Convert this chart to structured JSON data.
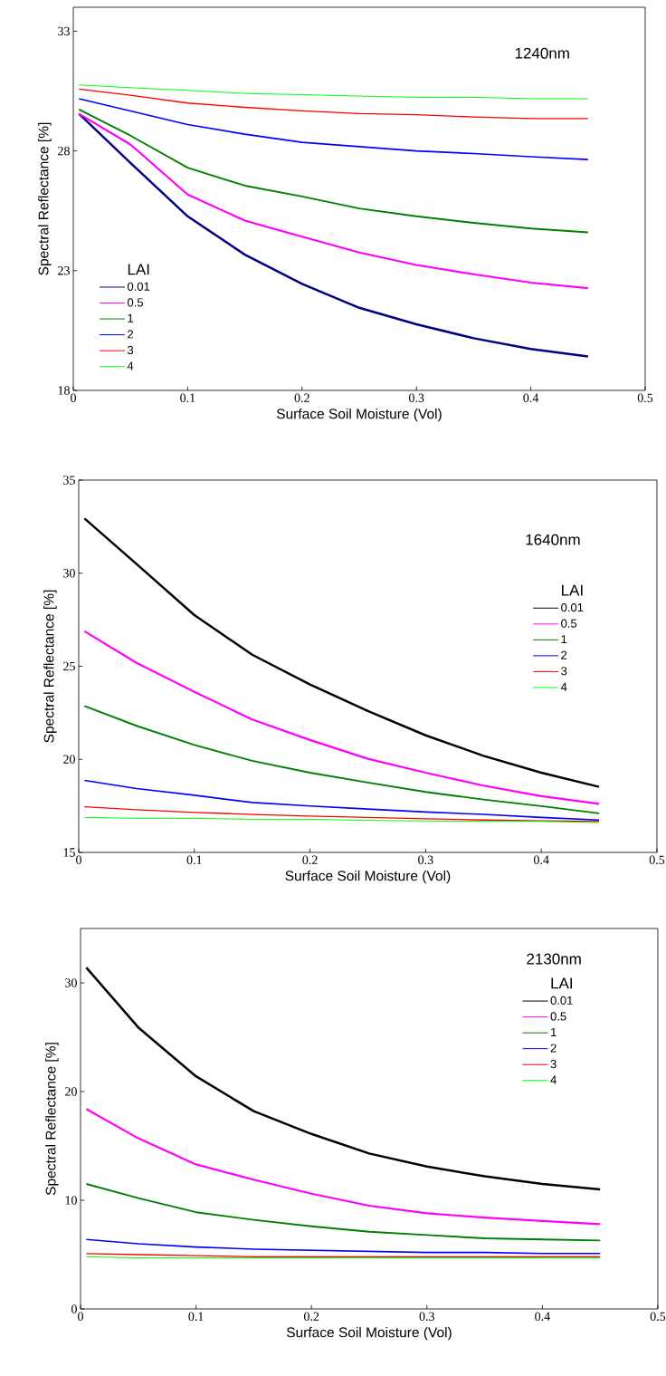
{
  "chart_data": [
    {
      "type": "line",
      "xlabel": "Surface Soil Moisture (Vol)",
      "ylabel": "Spectral Reflectance [%]",
      "annotations": [
        "1240nm"
      ],
      "legend_title": "LAI",
      "legend": "left",
      "x": [
        0.005,
        0.05,
        0.1,
        0.15,
        0.2,
        0.25,
        0.3,
        0.35,
        0.4,
        0.45
      ],
      "xlim": [
        0,
        0.5
      ],
      "xticks": [
        0,
        0.1,
        0.2,
        0.3,
        0.4,
        0.5
      ],
      "ylim": [
        18,
        34
      ],
      "yticks": [
        18,
        23,
        28,
        33
      ],
      "series": [
        {
          "name": "0.01",
          "color": "#000080",
          "values": [
            29.55,
            27.5,
            25.27,
            23.67,
            22.45,
            21.45,
            20.76,
            20.18,
            19.73,
            19.42
          ]
        },
        {
          "name": "0.5",
          "color": "#ff00ff",
          "values": [
            29.55,
            28.27,
            26.18,
            25.09,
            24.42,
            23.76,
            23.24,
            22.85,
            22.5,
            22.27
          ]
        },
        {
          "name": "1",
          "color": "#008000",
          "values": [
            29.73,
            28.64,
            27.3,
            26.55,
            26.1,
            25.6,
            25.27,
            25.0,
            24.76,
            24.6
          ]
        },
        {
          "name": "2",
          "color": "#0000ff",
          "values": [
            30.18,
            29.67,
            29.1,
            28.7,
            28.36,
            28.18,
            28.0,
            27.89,
            27.76,
            27.64
          ]
        },
        {
          "name": "3",
          "color": "#ff0000",
          "values": [
            30.58,
            30.33,
            30.0,
            29.82,
            29.67,
            29.56,
            29.51,
            29.42,
            29.35,
            29.35
          ]
        },
        {
          "name": "4",
          "color": "#00ff00",
          "values": [
            30.76,
            30.64,
            30.53,
            30.4,
            30.35,
            30.29,
            30.24,
            30.24,
            30.18,
            30.18
          ]
        }
      ]
    },
    {
      "type": "line",
      "xlabel": "Surface Soil Moisture (Vol)",
      "ylabel": "Spectral Reflectance [%]",
      "annotations": [
        "1640nm"
      ],
      "legend_title": "LAI",
      "legend": "right",
      "x": [
        0.005,
        0.05,
        0.1,
        0.15,
        0.2,
        0.25,
        0.3,
        0.35,
        0.4,
        0.45
      ],
      "xlim": [
        0,
        0.5
      ],
      "xticks": [
        0,
        0.1,
        0.2,
        0.3,
        0.4,
        0.5
      ],
      "ylim": [
        15,
        35
      ],
      "yticks": [
        15,
        20,
        25,
        30,
        35
      ],
      "series": [
        {
          "name": "0.01",
          "color": "#000000",
          "values": [
            32.94,
            30.49,
            27.75,
            25.62,
            24.02,
            22.6,
            21.29,
            20.19,
            19.28,
            18.52
          ]
        },
        {
          "name": "0.5",
          "color": "#ff00ff",
          "values": [
            26.88,
            25.18,
            23.63,
            22.14,
            21.04,
            20.03,
            19.28,
            18.59,
            18.02,
            17.61
          ]
        },
        {
          "name": "1",
          "color": "#008000",
          "values": [
            22.87,
            21.8,
            20.77,
            19.92,
            19.28,
            18.75,
            18.25,
            17.84,
            17.49,
            17.1
          ]
        },
        {
          "name": "2",
          "color": "#0000ff",
          "values": [
            18.87,
            18.43,
            18.07,
            17.68,
            17.49,
            17.33,
            17.17,
            17.04,
            16.88,
            16.74
          ]
        },
        {
          "name": "3",
          "color": "#ff0000",
          "values": [
            17.45,
            17.29,
            17.15,
            17.04,
            16.95,
            16.88,
            16.81,
            16.74,
            16.69,
            16.67
          ]
        },
        {
          "name": "4",
          "color": "#00ff00",
          "values": [
            16.88,
            16.83,
            16.83,
            16.78,
            16.78,
            16.72,
            16.69,
            16.67,
            16.67,
            16.6
          ]
        }
      ]
    },
    {
      "type": "line",
      "xlabel": "Surface Soil Moisture (Vol)",
      "ylabel": "Spectral Reflectance [%]",
      "annotations": [
        "2130nm"
      ],
      "legend_title": "LAI",
      "legend": "top right",
      "x": [
        0.005,
        0.05,
        0.1,
        0.15,
        0.2,
        0.25,
        0.3,
        0.35,
        0.4,
        0.45
      ],
      "xlim": [
        0,
        0.5
      ],
      "xticks": [
        0,
        0.1,
        0.2,
        0.3,
        0.4,
        0.5
      ],
      "ylim": [
        0,
        35
      ],
      "yticks": [
        0,
        10,
        20,
        30
      ],
      "series": [
        {
          "name": "0.01",
          "color": "#000000",
          "values": [
            31.4,
            25.9,
            21.4,
            18.2,
            16.1,
            14.3,
            13.1,
            12.2,
            11.5,
            11.0
          ]
        },
        {
          "name": "0.5",
          "color": "#ff00ff",
          "values": [
            18.4,
            15.7,
            13.3,
            11.9,
            10.6,
            9.5,
            8.8,
            8.4,
            8.1,
            7.8
          ]
        },
        {
          "name": "1",
          "color": "#008000",
          "values": [
            11.5,
            10.2,
            8.9,
            8.2,
            7.6,
            7.1,
            6.8,
            6.5,
            6.4,
            6.3
          ]
        },
        {
          "name": "2",
          "color": "#0000ff",
          "values": [
            6.4,
            6.0,
            5.7,
            5.5,
            5.4,
            5.3,
            5.2,
            5.2,
            5.1,
            5.1
          ]
        },
        {
          "name": "3",
          "color": "#ff0000",
          "values": [
            5.1,
            5.0,
            4.9,
            4.8,
            4.8,
            4.8,
            4.8,
            4.8,
            4.8,
            4.8
          ]
        },
        {
          "name": "4",
          "color": "#00ff00",
          "values": [
            4.8,
            4.7,
            4.7,
            4.7,
            4.7,
            4.7,
            4.7,
            4.7,
            4.7,
            4.7
          ]
        }
      ]
    }
  ]
}
